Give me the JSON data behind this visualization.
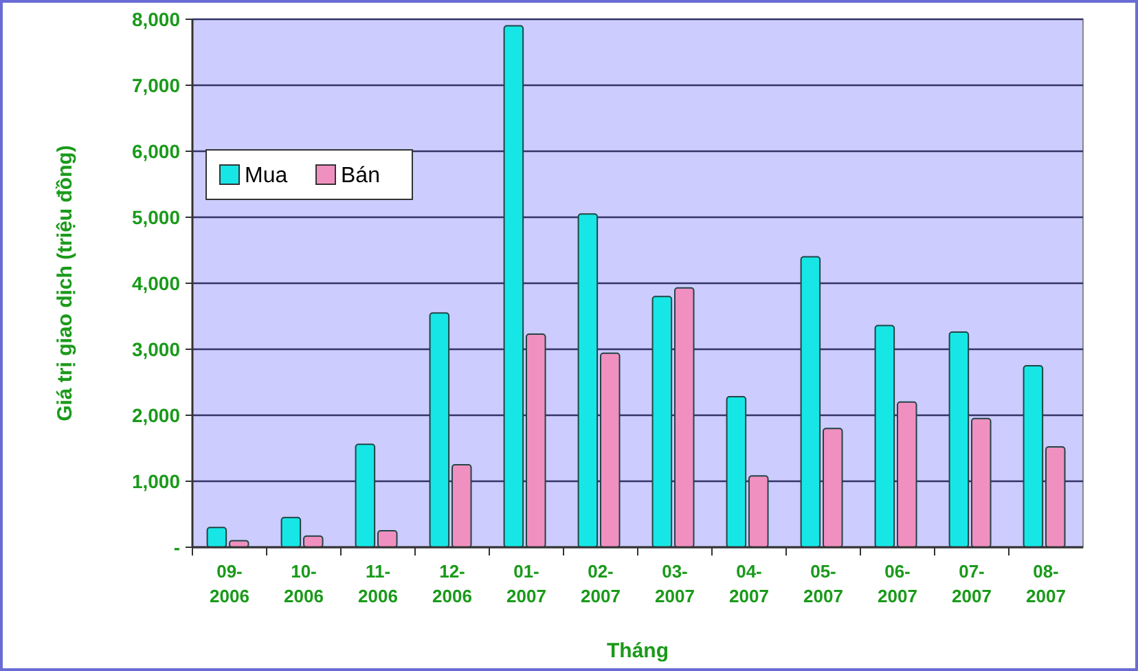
{
  "chart_data": {
    "type": "bar",
    "xlabel": "Tháng",
    "ylabel": "Giá trị giao dịch (triệu đồng)",
    "categories": [
      "09-2006",
      "10-2006",
      "11-2006",
      "12-2006",
      "01-2007",
      "02-2007",
      "03-2007",
      "04-2007",
      "05-2007",
      "06-2007",
      "07-2007",
      "08-2007"
    ],
    "series": [
      {
        "name": "Mua",
        "color": "#17e6e6",
        "values": [
          300,
          450,
          1560,
          3550,
          7900,
          5050,
          3800,
          2280,
          4400,
          3360,
          3260,
          2750
        ]
      },
      {
        "name": "Bán",
        "color": "#f090c0",
        "values": [
          100,
          170,
          250,
          1250,
          3230,
          2940,
          3930,
          1080,
          1800,
          2200,
          1950,
          1520
        ]
      }
    ],
    "ylim": [
      0,
      8000
    ],
    "yticks": [
      {
        "value": 0,
        "label": "-"
      },
      {
        "value": 1000,
        "label": "1,000"
      },
      {
        "value": 2000,
        "label": "2,000"
      },
      {
        "value": 3000,
        "label": "3,000"
      },
      {
        "value": 4000,
        "label": "4,000"
      },
      {
        "value": 5000,
        "label": "5,000"
      },
      {
        "value": 6000,
        "label": "6,000"
      },
      {
        "value": 7000,
        "label": "7,000"
      },
      {
        "value": 8000,
        "label": "8,000"
      }
    ],
    "grid": "y",
    "legend": "top left"
  }
}
